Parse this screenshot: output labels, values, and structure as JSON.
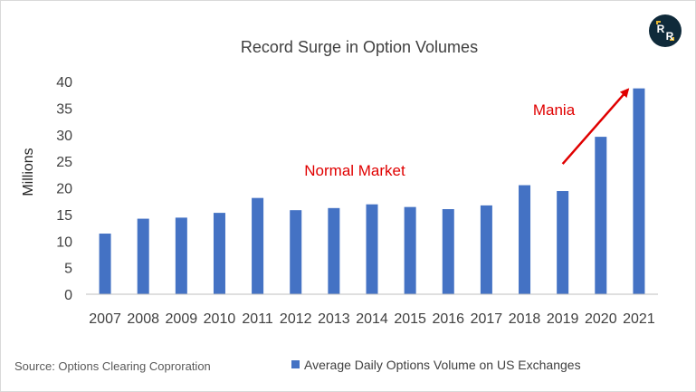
{
  "chart_data": {
    "type": "bar",
    "title": "Record Surge in Option Volumes",
    "ylabel": "Millions",
    "xlabel": "",
    "categories": [
      "2007",
      "2008",
      "2009",
      "2010",
      "2011",
      "2012",
      "2013",
      "2014",
      "2015",
      "2016",
      "2017",
      "2018",
      "2019",
      "2020",
      "2021"
    ],
    "series": [
      {
        "name": "Average Daily Options Volume on US Exchanges",
        "values": [
          11.4,
          14.2,
          14.4,
          15.3,
          18.1,
          15.8,
          16.2,
          16.9,
          16.4,
          16.0,
          16.7,
          20.5,
          19.4,
          29.6,
          38.7
        ]
      }
    ],
    "ylim": [
      0,
      40
    ],
    "yticks": [
      0,
      5,
      10,
      15,
      20,
      25,
      30,
      35,
      40
    ],
    "grid": false,
    "legend_position": "bottom-right",
    "annotations": [
      {
        "text": "Normal Market",
        "color": "#e00000"
      },
      {
        "text": "Mania",
        "color": "#e00000",
        "arrow_from": [
          "2019",
          24.5
        ],
        "arrow_to": [
          "2021",
          38.5
        ]
      }
    ],
    "bar_color": "#4472c4"
  },
  "source_note": "Source: Options Clearing Coproration",
  "logo": {
    "name": "rr-logo",
    "text": "RR"
  }
}
